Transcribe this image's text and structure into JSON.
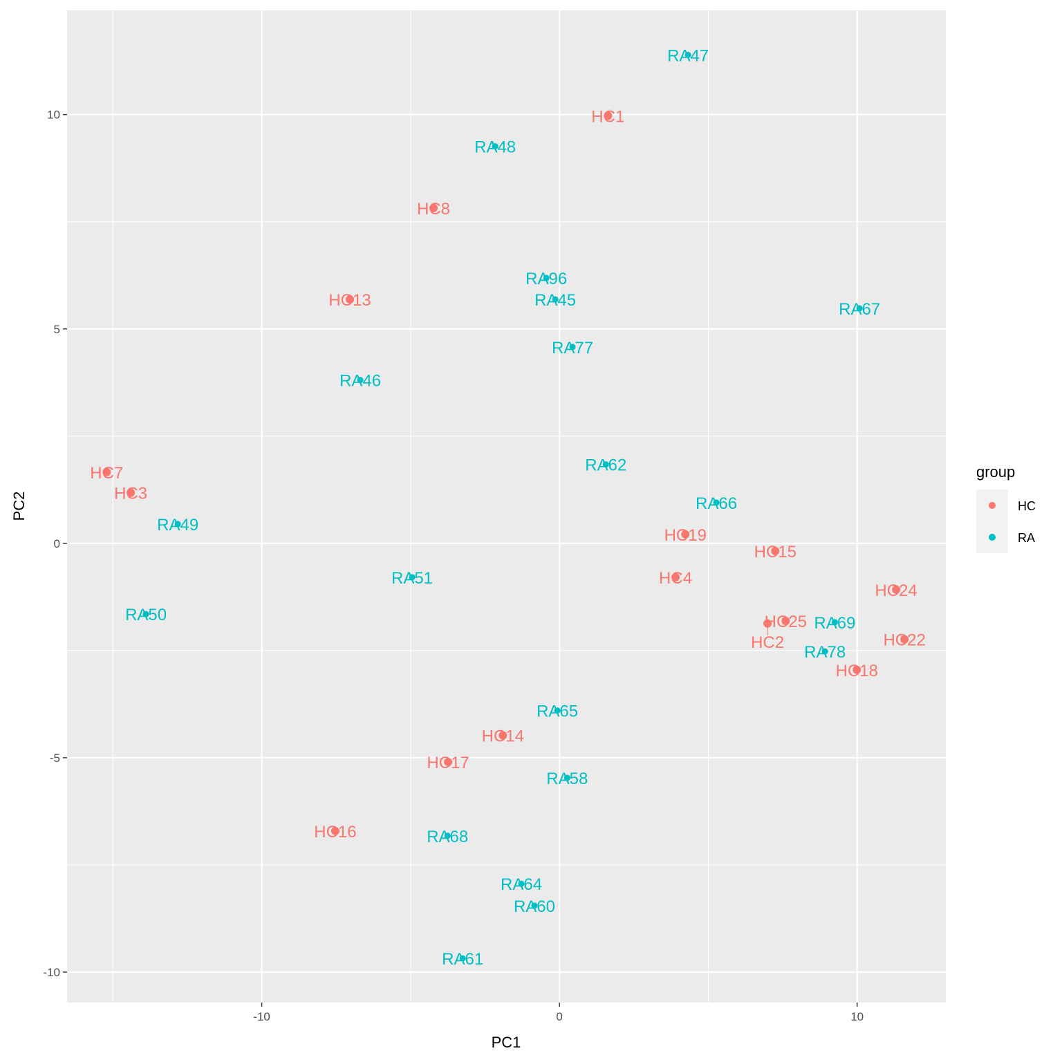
{
  "chart_data": {
    "type": "scatter",
    "title": "",
    "xlabel": "PC1",
    "ylabel": "PC2",
    "xlim": [
      -16.54,
      12.98
    ],
    "ylim": [
      -10.71,
      12.43
    ],
    "xticks": [
      -10,
      0,
      10
    ],
    "yticks": [
      -10,
      -5,
      0,
      5,
      10
    ],
    "grid": true,
    "legend": {
      "title": "group",
      "placement": "right",
      "entries": [
        "HC",
        "RA"
      ]
    },
    "colors": {
      "HC": "#F8766D",
      "RA": "#00BFC4"
    },
    "points": [
      {
        "label": "RA47",
        "group": "RA",
        "x": 4.32,
        "y": 11.39
      },
      {
        "label": "HC1",
        "group": "HC",
        "x": 1.63,
        "y": 9.97
      },
      {
        "label": "RA48",
        "group": "RA",
        "x": -2.16,
        "y": 9.26
      },
      {
        "label": "HC8",
        "group": "HC",
        "x": -4.23,
        "y": 7.82
      },
      {
        "label": "RA96",
        "group": "RA",
        "x": -0.44,
        "y": 6.19
      },
      {
        "label": "RA45",
        "group": "RA",
        "x": -0.14,
        "y": 5.69
      },
      {
        "label": "HC13",
        "group": "HC",
        "x": -7.04,
        "y": 5.69
      },
      {
        "label": "RA67",
        "group": "RA",
        "x": 10.08,
        "y": 5.48
      },
      {
        "label": "RA77",
        "group": "RA",
        "x": 0.44,
        "y": 4.58
      },
      {
        "label": "RA46",
        "group": "RA",
        "x": -6.69,
        "y": 3.81
      },
      {
        "label": "RA62",
        "group": "RA",
        "x": 1.56,
        "y": 1.84
      },
      {
        "label": "HC7",
        "group": "HC",
        "x": -15.21,
        "y": 1.66
      },
      {
        "label": "HC3",
        "group": "HC",
        "x": -14.4,
        "y": 1.18
      },
      {
        "label": "RA66",
        "group": "RA",
        "x": 5.27,
        "y": 0.95
      },
      {
        "label": "RA49",
        "group": "RA",
        "x": -12.82,
        "y": 0.45
      },
      {
        "label": "HC19",
        "group": "HC",
        "x": 4.23,
        "y": 0.21
      },
      {
        "label": "HC15",
        "group": "HC",
        "x": 7.25,
        "y": -0.18
      },
      {
        "label": "HC4",
        "group": "HC",
        "x": 3.9,
        "y": -0.79
      },
      {
        "label": "RA51",
        "group": "RA",
        "x": -4.95,
        "y": -0.79
      },
      {
        "label": "HC24",
        "group": "HC",
        "x": 11.31,
        "y": -1.08
      },
      {
        "label": "RA50",
        "group": "RA",
        "x": -13.89,
        "y": -1.65
      },
      {
        "label": "HC25",
        "group": "HC",
        "x": 7.6,
        "y": -1.81
      },
      {
        "label": "HC2",
        "group": "HC",
        "x": 6.99,
        "y": -1.87
      },
      {
        "label": "RA69",
        "group": "RA",
        "x": 9.25,
        "y": -1.84
      },
      {
        "label": "HC22",
        "group": "HC",
        "x": 11.59,
        "y": -2.24
      },
      {
        "label": "RA78",
        "group": "RA",
        "x": 8.92,
        "y": -2.52
      },
      {
        "label": "HC18",
        "group": "HC",
        "x": 9.99,
        "y": -2.95
      },
      {
        "label": "RA65",
        "group": "RA",
        "x": -0.07,
        "y": -3.9
      },
      {
        "label": "HC14",
        "group": "HC",
        "x": -1.9,
        "y": -4.48
      },
      {
        "label": "HC17",
        "group": "HC",
        "x": -3.74,
        "y": -5.1
      },
      {
        "label": "RA58",
        "group": "RA",
        "x": 0.26,
        "y": -5.47
      },
      {
        "label": "HC16",
        "group": "HC",
        "x": -7.53,
        "y": -6.71
      },
      {
        "label": "RA68",
        "group": "RA",
        "x": -3.76,
        "y": -6.82
      },
      {
        "label": "RA64",
        "group": "RA",
        "x": -1.28,
        "y": -7.94
      },
      {
        "label": "RA60",
        "group": "RA",
        "x": -0.84,
        "y": -8.45
      },
      {
        "label": "RA61",
        "group": "RA",
        "x": -3.25,
        "y": -9.68
      }
    ]
  }
}
